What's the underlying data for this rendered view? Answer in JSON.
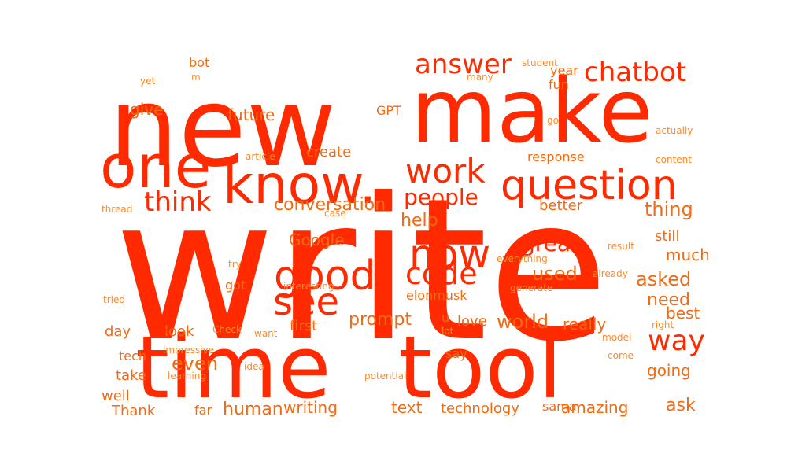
{
  "word_cloud": {
    "colors": {
      "primary": "#ff2a00",
      "secondary": "#f26a12",
      "accent": "#ff8a2a"
    },
    "words": [
      {
        "text": "write",
        "weight": 1.0,
        "color": "primary"
      },
      {
        "text": "new",
        "weight": 0.8,
        "color": "primary"
      },
      {
        "text": "make",
        "weight": 0.68,
        "color": "primary"
      },
      {
        "text": "time",
        "weight": 0.55,
        "color": "primary"
      },
      {
        "text": "tool",
        "weight": 0.55,
        "color": "primary"
      },
      {
        "text": "one",
        "weight": 0.45,
        "color": "primary"
      },
      {
        "text": "know.",
        "weight": 0.42,
        "color": "primary"
      },
      {
        "text": "question",
        "weight": 0.3,
        "color": "primary"
      },
      {
        "text": "good",
        "weight": 0.28,
        "color": "primary"
      },
      {
        "text": "now",
        "weight": 0.26,
        "color": "primary"
      },
      {
        "text": "see",
        "weight": 0.25,
        "color": "primary"
      },
      {
        "text": "work",
        "weight": 0.22,
        "color": "primary"
      },
      {
        "text": "code",
        "weight": 0.19,
        "color": "primary"
      },
      {
        "text": "way",
        "weight": 0.18,
        "color": "primary"
      },
      {
        "text": "answer",
        "weight": 0.17,
        "color": "primary"
      },
      {
        "text": "chatbot",
        "weight": 0.17,
        "color": "primary"
      },
      {
        "text": "think",
        "weight": 0.17,
        "color": "primary"
      },
      {
        "text": "people",
        "weight": 0.14,
        "color": "primary"
      },
      {
        "text": "great",
        "weight": 0.14,
        "color": "primary"
      },
      {
        "text": "conversation",
        "weight": 0.12,
        "color": "secondary"
      },
      {
        "text": "world",
        "weight": 0.12,
        "color": "secondary"
      },
      {
        "text": "used",
        "weight": 0.12,
        "color": "secondary"
      },
      {
        "text": "asked",
        "weight": 0.12,
        "color": "secondary"
      },
      {
        "text": "thing",
        "weight": 0.12,
        "color": "secondary"
      },
      {
        "text": "even",
        "weight": 0.12,
        "color": "secondary"
      },
      {
        "text": "help",
        "weight": 0.11,
        "color": "secondary"
      },
      {
        "text": "need",
        "weight": 0.11,
        "color": "secondary"
      },
      {
        "text": "human",
        "weight": 0.11,
        "color": "secondary"
      },
      {
        "text": "prompt",
        "weight": 0.11,
        "color": "secondary"
      },
      {
        "text": "Google",
        "weight": 0.1,
        "color": "secondary"
      },
      {
        "text": "future",
        "weight": 0.1,
        "color": "secondary"
      },
      {
        "text": "writing",
        "weight": 0.1,
        "color": "secondary"
      },
      {
        "text": "really",
        "weight": 0.1,
        "color": "secondary"
      },
      {
        "text": "amazing",
        "weight": 0.1,
        "color": "secondary"
      },
      {
        "text": "ask",
        "weight": 0.1,
        "color": "secondary"
      },
      {
        "text": "much",
        "weight": 0.1,
        "color": "secondary"
      },
      {
        "text": "best",
        "weight": 0.1,
        "color": "secondary"
      },
      {
        "text": "going",
        "weight": 0.1,
        "color": "secondary"
      },
      {
        "text": "technology",
        "weight": 0.1,
        "color": "secondary"
      },
      {
        "text": "text",
        "weight": 0.1,
        "color": "secondary"
      },
      {
        "text": "still",
        "weight": 0.09,
        "color": "secondary"
      },
      {
        "text": "give",
        "weight": 0.09,
        "color": "secondary"
      },
      {
        "text": "create",
        "weight": 0.09,
        "color": "secondary"
      },
      {
        "text": "better",
        "weight": 0.09,
        "color": "secondary"
      },
      {
        "text": "love",
        "weight": 0.09,
        "color": "secondary"
      },
      {
        "text": "first",
        "weight": 0.09,
        "color": "secondary"
      },
      {
        "text": "day",
        "weight": 0.09,
        "color": "secondary"
      },
      {
        "text": "well",
        "weight": 0.09,
        "color": "secondary"
      },
      {
        "text": "Thank",
        "weight": 0.09,
        "color": "secondary"
      },
      {
        "text": "take",
        "weight": 0.09,
        "color": "secondary"
      },
      {
        "text": "look",
        "weight": 0.09,
        "color": "secondary"
      },
      {
        "text": "sama",
        "weight": 0.08,
        "color": "secondary"
      },
      {
        "text": "elonmusk",
        "weight": 0.08,
        "color": "secondary"
      },
      {
        "text": "response",
        "weight": 0.08,
        "color": "secondary"
      },
      {
        "text": "year",
        "weight": 0.08,
        "color": "secondary"
      },
      {
        "text": "got",
        "weight": 0.08,
        "color": "secondary"
      },
      {
        "text": "u",
        "weight": 0.08,
        "color": "secondary"
      },
      {
        "text": "tech",
        "weight": 0.08,
        "color": "secondary"
      },
      {
        "text": "far",
        "weight": 0.08,
        "color": "secondary"
      },
      {
        "text": "say",
        "weight": 0.08,
        "color": "secondary"
      },
      {
        "text": "bot",
        "weight": 0.07,
        "color": "secondary"
      },
      {
        "text": "GPT",
        "weight": 0.07,
        "color": "secondary"
      },
      {
        "text": "fun",
        "weight": 0.07,
        "color": "secondary"
      },
      {
        "text": "student",
        "weight": 0.06,
        "color": "accent"
      },
      {
        "text": "many",
        "weight": 0.06,
        "color": "accent"
      },
      {
        "text": "go",
        "weight": 0.06,
        "color": "accent"
      },
      {
        "text": "article",
        "weight": 0.06,
        "color": "accent"
      },
      {
        "text": "actually",
        "weight": 0.06,
        "color": "accent"
      },
      {
        "text": "content",
        "weight": 0.06,
        "color": "accent"
      },
      {
        "text": "thread",
        "weight": 0.06,
        "color": "accent"
      },
      {
        "text": "case",
        "weight": 0.06,
        "color": "accent"
      },
      {
        "text": "result",
        "weight": 0.06,
        "color": "accent"
      },
      {
        "text": "everything",
        "weight": 0.06,
        "color": "accent"
      },
      {
        "text": "try",
        "weight": 0.06,
        "color": "accent"
      },
      {
        "text": "already",
        "weight": 0.06,
        "color": "accent"
      },
      {
        "text": "interesting",
        "weight": 0.06,
        "color": "accent"
      },
      {
        "text": "generate",
        "weight": 0.06,
        "color": "accent"
      },
      {
        "text": "tried",
        "weight": 0.06,
        "color": "accent"
      },
      {
        "text": "Check",
        "weight": 0.06,
        "color": "accent"
      },
      {
        "text": "want",
        "weight": 0.06,
        "color": "accent"
      },
      {
        "text": "right",
        "weight": 0.06,
        "color": "accent"
      },
      {
        "text": "impressive",
        "weight": 0.06,
        "color": "accent"
      },
      {
        "text": "lot",
        "weight": 0.06,
        "color": "accent"
      },
      {
        "text": "model",
        "weight": 0.06,
        "color": "accent"
      },
      {
        "text": "come",
        "weight": 0.06,
        "color": "accent"
      },
      {
        "text": "learning",
        "weight": 0.06,
        "color": "accent"
      },
      {
        "text": "idea",
        "weight": 0.06,
        "color": "accent"
      },
      {
        "text": "potential",
        "weight": 0.06,
        "color": "accent"
      },
      {
        "text": "yet",
        "weight": 0.06,
        "color": "accent"
      },
      {
        "text": "m",
        "weight": 0.06,
        "color": "accent"
      }
    ]
  }
}
